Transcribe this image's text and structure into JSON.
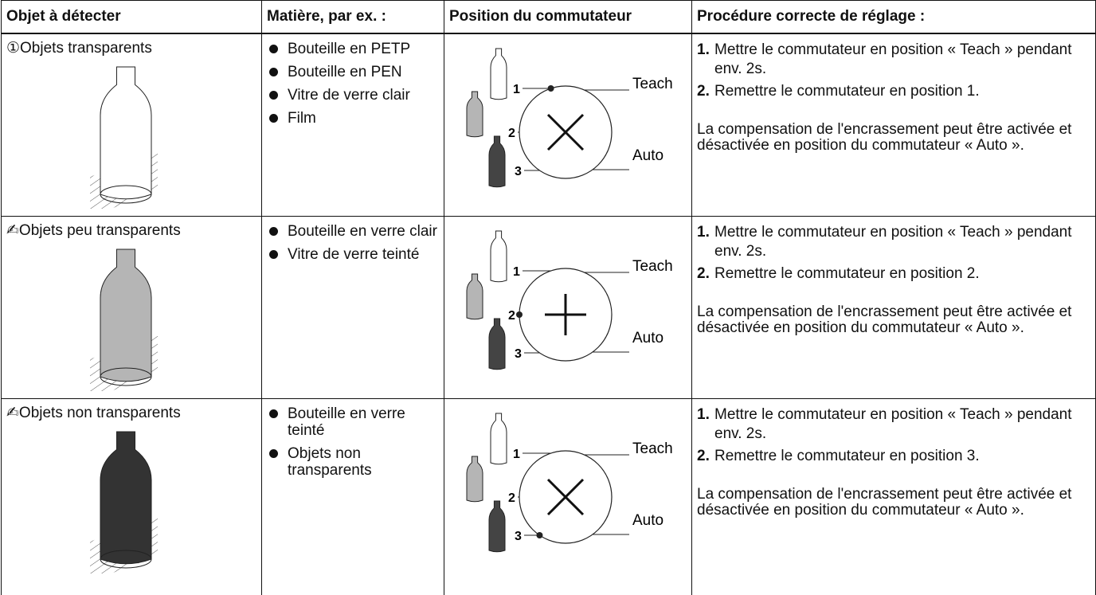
{
  "table": {
    "headers": [
      "Objet à détecter",
      "Matière, par ex. :",
      "Position du commutateur",
      "Procédure correcte de réglage :"
    ],
    "rows": [
      {
        "object": "①Objets transparents",
        "materials": [
          "Bouteille en PETP",
          "Bouteille en PEN",
          "Vitre de verre clair",
          "Film"
        ],
        "switch": {
          "positions": [
            "1",
            "2",
            "3"
          ],
          "teach": "Teach",
          "auto": "Auto"
        },
        "steps": [
          {
            "num": "1.",
            "text": "Mettre le commutateur en position « Teach » pendant env. 2s."
          },
          {
            "num": "2.",
            "text": "Remettre le commutateur en position 1."
          }
        ],
        "note": "La compensation de l'encrassement peut être activée et désactivée en position du commutateur « Auto »."
      },
      {
        "object": "✍Objets peu transparents",
        "materials": [
          "Bouteille en verre clair",
          "Vitre de verre teinté"
        ],
        "switch": {
          "positions": [
            "1",
            "2",
            "3"
          ],
          "teach": "Teach",
          "auto": "Auto"
        },
        "steps": [
          {
            "num": "1.",
            "text": "Mettre le commutateur en position « Teach » pendant env. 2s."
          },
          {
            "num": "2.",
            "text": "Remettre le commutateur en position 2."
          }
        ],
        "note": "La compensation de l'encrassement peut être activée et désactivée en position du commutateur « Auto »."
      },
      {
        "object": "✍Objets non transparents",
        "materials": [
          "Bouteille en verre teinté",
          "Objets non transparents"
        ],
        "switch": {
          "positions": [
            "1",
            "2",
            "3"
          ],
          "teach": "Teach",
          "auto": "Auto"
        },
        "steps": [
          {
            "num": "1.",
            "text": "Mettre le commutateur en position « Teach » pendant env. 2s."
          },
          {
            "num": "2.",
            "text": "Remettre le commutateur en position 3."
          }
        ],
        "note": "La compensation de l'encrassement peut être activée et désactivée en position du commutateur « Auto »."
      }
    ]
  }
}
